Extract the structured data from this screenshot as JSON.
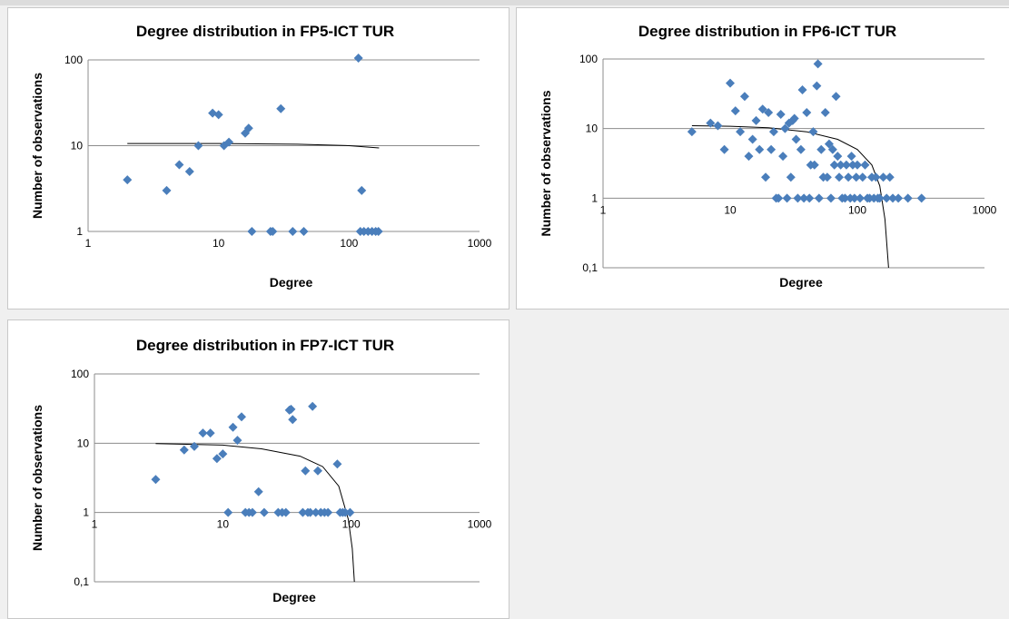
{
  "colors": {
    "marker": "#4a7ebb",
    "gridline": "#8c8c8c",
    "trendline": "#000000",
    "background": "#ffffff"
  },
  "chart_data": [
    {
      "id": "fp5",
      "type": "scatter",
      "title": "Degree distribution in FP5-ICT TUR",
      "xlabel": "Degree",
      "ylabel": "Number of observations",
      "xscale": "log",
      "yscale": "log",
      "xlim": [
        1,
        1000
      ],
      "ylim": [
        1,
        100
      ],
      "x_ticks": [
        "1",
        "10",
        "100",
        "1000"
      ],
      "y_ticks": [
        "1",
        "10",
        "100"
      ],
      "grid": "horizontal",
      "legend": "none",
      "points": [
        {
          "x": 2,
          "y": 4
        },
        {
          "x": 4,
          "y": 3
        },
        {
          "x": 5,
          "y": 6
        },
        {
          "x": 6,
          "y": 5
        },
        {
          "x": 7,
          "y": 10
        },
        {
          "x": 9,
          "y": 24
        },
        {
          "x": 10,
          "y": 23
        },
        {
          "x": 11,
          "y": 10
        },
        {
          "x": 12,
          "y": 11
        },
        {
          "x": 16,
          "y": 14
        },
        {
          "x": 17,
          "y": 16
        },
        {
          "x": 18,
          "y": 1
        },
        {
          "x": 25,
          "y": 1
        },
        {
          "x": 26,
          "y": 1
        },
        {
          "x": 30,
          "y": 27
        },
        {
          "x": 37,
          "y": 1
        },
        {
          "x": 45,
          "y": 1
        },
        {
          "x": 118,
          "y": 105
        },
        {
          "x": 125,
          "y": 3
        },
        {
          "x": 122,
          "y": 1
        },
        {
          "x": 130,
          "y": 1
        },
        {
          "x": 140,
          "y": 1
        },
        {
          "x": 150,
          "y": 1
        },
        {
          "x": 160,
          "y": 1
        },
        {
          "x": 168,
          "y": 1
        }
      ],
      "trendline": [
        {
          "x": 2,
          "y": 10.6
        },
        {
          "x": 10,
          "y": 10.6
        },
        {
          "x": 40,
          "y": 10.4
        },
        {
          "x": 100,
          "y": 10.0
        },
        {
          "x": 170,
          "y": 9.4
        }
      ]
    },
    {
      "id": "fp6",
      "type": "scatter",
      "title": "Degree distribution in FP6-ICT TUR",
      "xlabel": "Degree",
      "ylabel": "Number of observations",
      "xscale": "log",
      "yscale": "log",
      "xlim": [
        1,
        1000
      ],
      "ylim": [
        0.1,
        100
      ],
      "x_ticks": [
        "1",
        "10",
        "100",
        "1000"
      ],
      "y_ticks": [
        "0,1",
        "1",
        "10",
        "100"
      ],
      "grid": "horizontal",
      "legend": "none",
      "points": [
        {
          "x": 5,
          "y": 9
        },
        {
          "x": 7,
          "y": 12
        },
        {
          "x": 8,
          "y": 11
        },
        {
          "x": 9,
          "y": 5
        },
        {
          "x": 10,
          "y": 45
        },
        {
          "x": 11,
          "y": 18
        },
        {
          "x": 12,
          "y": 9
        },
        {
          "x": 13,
          "y": 29
        },
        {
          "x": 14,
          "y": 4
        },
        {
          "x": 15,
          "y": 7
        },
        {
          "x": 16,
          "y": 13
        },
        {
          "x": 17,
          "y": 5
        },
        {
          "x": 18,
          "y": 19
        },
        {
          "x": 19,
          "y": 2
        },
        {
          "x": 20,
          "y": 17
        },
        {
          "x": 21,
          "y": 5
        },
        {
          "x": 22,
          "y": 9
        },
        {
          "x": 23,
          "y": 1
        },
        {
          "x": 24,
          "y": 1
        },
        {
          "x": 25,
          "y": 16
        },
        {
          "x": 26,
          "y": 4
        },
        {
          "x": 27,
          "y": 10
        },
        {
          "x": 28,
          "y": 1
        },
        {
          "x": 29,
          "y": 12
        },
        {
          "x": 30,
          "y": 2
        },
        {
          "x": 31,
          "y": 13
        },
        {
          "x": 32,
          "y": 14
        },
        {
          "x": 33,
          "y": 7
        },
        {
          "x": 34,
          "y": 1
        },
        {
          "x": 36,
          "y": 5
        },
        {
          "x": 37,
          "y": 36
        },
        {
          "x": 38,
          "y": 1
        },
        {
          "x": 40,
          "y": 17
        },
        {
          "x": 42,
          "y": 1
        },
        {
          "x": 43,
          "y": 3
        },
        {
          "x": 45,
          "y": 9
        },
        {
          "x": 46,
          "y": 3
        },
        {
          "x": 48,
          "y": 41
        },
        {
          "x": 49,
          "y": 85
        },
        {
          "x": 50,
          "y": 1
        },
        {
          "x": 52,
          "y": 5
        },
        {
          "x": 54,
          "y": 2
        },
        {
          "x": 56,
          "y": 17
        },
        {
          "x": 58,
          "y": 2
        },
        {
          "x": 60,
          "y": 6
        },
        {
          "x": 62,
          "y": 1
        },
        {
          "x": 64,
          "y": 5
        },
        {
          "x": 66,
          "y": 3
        },
        {
          "x": 68,
          "y": 29
        },
        {
          "x": 70,
          "y": 4
        },
        {
          "x": 72,
          "y": 2
        },
        {
          "x": 74,
          "y": 3
        },
        {
          "x": 76,
          "y": 1
        },
        {
          "x": 80,
          "y": 1
        },
        {
          "x": 82,
          "y": 3
        },
        {
          "x": 85,
          "y": 2
        },
        {
          "x": 88,
          "y": 1
        },
        {
          "x": 90,
          "y": 4
        },
        {
          "x": 92,
          "y": 3
        },
        {
          "x": 95,
          "y": 1
        },
        {
          "x": 98,
          "y": 2
        },
        {
          "x": 100,
          "y": 3
        },
        {
          "x": 105,
          "y": 1
        },
        {
          "x": 110,
          "y": 2
        },
        {
          "x": 115,
          "y": 3
        },
        {
          "x": 120,
          "y": 1
        },
        {
          "x": 125,
          "y": 1
        },
        {
          "x": 130,
          "y": 2
        },
        {
          "x": 135,
          "y": 1
        },
        {
          "x": 140,
          "y": 2
        },
        {
          "x": 145,
          "y": 1
        },
        {
          "x": 150,
          "y": 1
        },
        {
          "x": 160,
          "y": 2
        },
        {
          "x": 170,
          "y": 1
        },
        {
          "x": 180,
          "y": 2
        },
        {
          "x": 190,
          "y": 1
        },
        {
          "x": 210,
          "y": 1
        },
        {
          "x": 250,
          "y": 1
        },
        {
          "x": 320,
          "y": 1
        }
      ],
      "trendline": [
        {
          "x": 5,
          "y": 11
        },
        {
          "x": 10,
          "y": 10.8
        },
        {
          "x": 20,
          "y": 10.3
        },
        {
          "x": 40,
          "y": 9
        },
        {
          "x": 70,
          "y": 7
        },
        {
          "x": 100,
          "y": 5
        },
        {
          "x": 130,
          "y": 3
        },
        {
          "x": 150,
          "y": 1.5
        },
        {
          "x": 165,
          "y": 0.5
        },
        {
          "x": 176,
          "y": 0.1
        }
      ]
    },
    {
      "id": "fp7",
      "type": "scatter",
      "title": "Degree distribution in FP7-ICT TUR",
      "xlabel": "Degree",
      "ylabel": "Number of observations",
      "xscale": "log",
      "yscale": "log",
      "xlim": [
        1,
        1000
      ],
      "ylim": [
        0.1,
        100
      ],
      "x_ticks": [
        "1",
        "10",
        "100",
        "1000"
      ],
      "y_ticks": [
        "0,1",
        "1",
        "10",
        "100"
      ],
      "grid": "horizontal",
      "legend": "none",
      "points": [
        {
          "x": 3,
          "y": 3
        },
        {
          "x": 5,
          "y": 8
        },
        {
          "x": 6,
          "y": 9
        },
        {
          "x": 7,
          "y": 14
        },
        {
          "x": 8,
          "y": 14
        },
        {
          "x": 9,
          "y": 6
        },
        {
          "x": 10,
          "y": 7
        },
        {
          "x": 11,
          "y": 1
        },
        {
          "x": 12,
          "y": 17
        },
        {
          "x": 13,
          "y": 11
        },
        {
          "x": 14,
          "y": 24
        },
        {
          "x": 15,
          "y": 1
        },
        {
          "x": 16,
          "y": 1
        },
        {
          "x": 17,
          "y": 1
        },
        {
          "x": 19,
          "y": 2
        },
        {
          "x": 21,
          "y": 1
        },
        {
          "x": 27,
          "y": 1
        },
        {
          "x": 29,
          "y": 1
        },
        {
          "x": 31,
          "y": 1
        },
        {
          "x": 33,
          "y": 30
        },
        {
          "x": 34,
          "y": 31
        },
        {
          "x": 35,
          "y": 22
        },
        {
          "x": 42,
          "y": 1
        },
        {
          "x": 44,
          "y": 4
        },
        {
          "x": 46,
          "y": 1
        },
        {
          "x": 48,
          "y": 1
        },
        {
          "x": 50,
          "y": 34
        },
        {
          "x": 53,
          "y": 1
        },
        {
          "x": 55,
          "y": 4
        },
        {
          "x": 58,
          "y": 1
        },
        {
          "x": 62,
          "y": 1
        },
        {
          "x": 66,
          "y": 1
        },
        {
          "x": 78,
          "y": 5
        },
        {
          "x": 82,
          "y": 1
        },
        {
          "x": 86,
          "y": 1
        },
        {
          "x": 90,
          "y": 1
        },
        {
          "x": 98,
          "y": 1
        }
      ],
      "trendline": [
        {
          "x": 3,
          "y": 9.9
        },
        {
          "x": 10,
          "y": 9.4
        },
        {
          "x": 20,
          "y": 8.3
        },
        {
          "x": 40,
          "y": 6.5
        },
        {
          "x": 60,
          "y": 4.6
        },
        {
          "x": 80,
          "y": 2.4
        },
        {
          "x": 95,
          "y": 0.8
        },
        {
          "x": 102,
          "y": 0.3
        },
        {
          "x": 106,
          "y": 0.1
        }
      ]
    }
  ]
}
